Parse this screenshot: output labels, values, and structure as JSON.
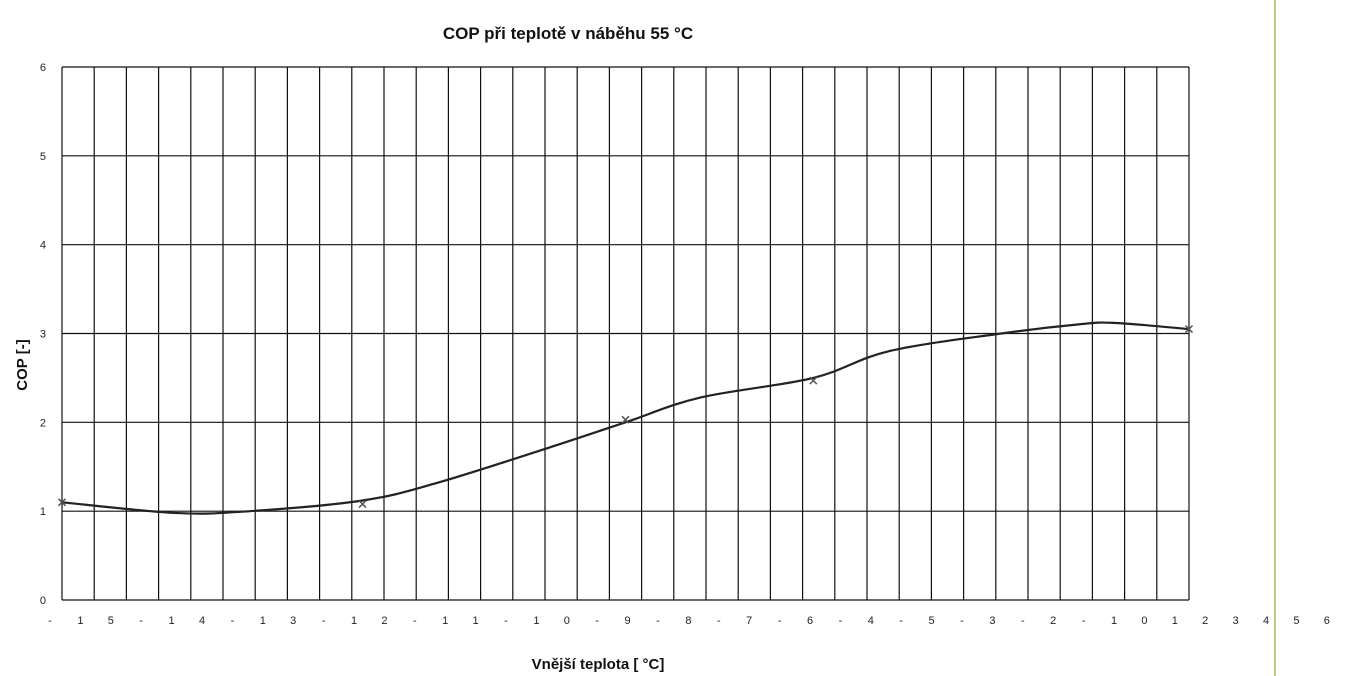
{
  "colors": {
    "grid": "#111111",
    "curve": "#222222",
    "marker": "#555555",
    "side_rule": "#b8cf7e",
    "background": "#ffffff"
  },
  "chart_data": {
    "type": "line",
    "title": "COP při teplotě v náběhu 55 °C",
    "xlabel": "Vnější teplota [ °C]",
    "ylabel": "COP [-]",
    "ylim": [
      0,
      6
    ],
    "y_ticks": [
      "0",
      "1",
      "2",
      "3",
      "4",
      "5",
      "6"
    ],
    "x_tick_labels": [
      "-",
      "1",
      "5",
      "-",
      "1",
      "4",
      "-",
      "1",
      "3",
      "-",
      "1",
      "2",
      "-",
      "1",
      "1",
      "-",
      "1",
      "0",
      "-",
      "9",
      "-",
      "8",
      "-",
      "7",
      "-",
      "6",
      "-",
      "4",
      "-",
      "5",
      "-",
      "3",
      "-",
      "2",
      "-",
      "1",
      "0",
      "1",
      "2",
      "3",
      "4",
      "5",
      "6"
    ],
    "grid": true,
    "series": [
      {
        "values": [
          [
            -15,
            1.1
          ],
          [
            -12,
            0.98
          ],
          [
            -10,
            1.0
          ],
          [
            -7,
            1.12
          ],
          [
            -5,
            1.32
          ],
          [
            -2,
            1.72
          ],
          [
            0,
            2.0
          ],
          [
            2,
            2.28
          ],
          [
            5,
            2.5
          ],
          [
            7,
            2.8
          ],
          [
            10,
            3.0
          ],
          [
            12,
            3.1
          ],
          [
            13,
            3.12
          ],
          [
            15,
            3.05
          ]
        ]
      }
    ],
    "markers": [
      [
        -15,
        1.1
      ],
      [
        -7,
        1.08
      ],
      [
        0,
        2.03
      ],
      [
        5,
        2.47
      ],
      [
        15,
        3.05
      ]
    ]
  }
}
